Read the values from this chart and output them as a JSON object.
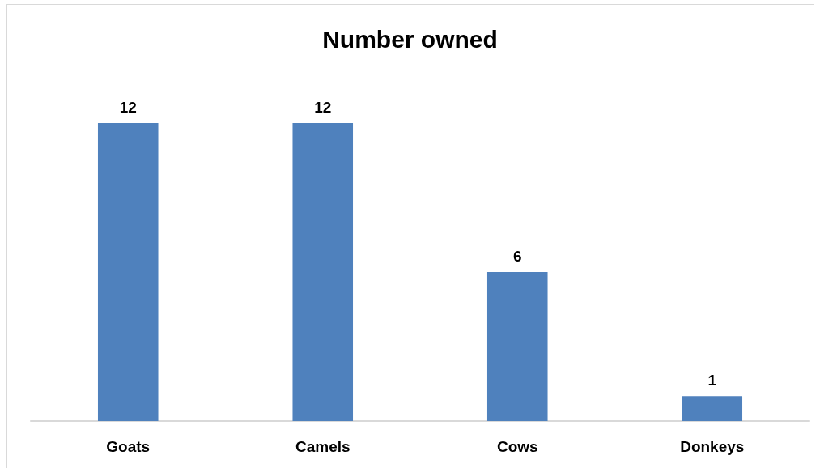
{
  "chart_data": {
    "type": "bar",
    "title": "Number owned",
    "categories": [
      "Goats",
      "Camels",
      "Cows",
      "Donkeys"
    ],
    "values": [
      12,
      12,
      6,
      1
    ],
    "color": "#4f81bd",
    "data_labels": true,
    "tick_labels": "x"
  }
}
